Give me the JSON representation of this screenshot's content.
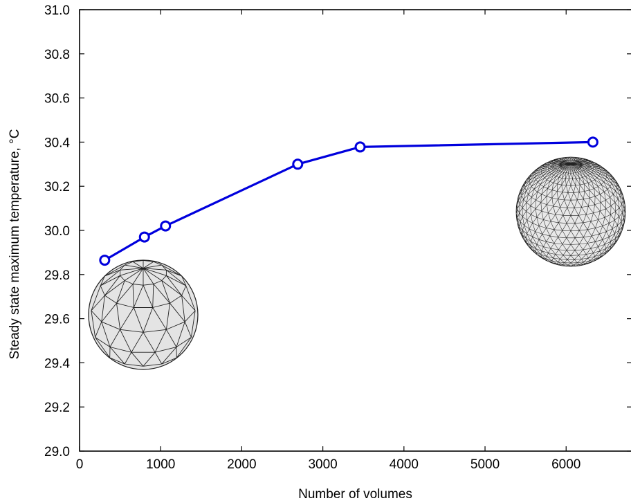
{
  "chart_data": {
    "type": "line",
    "title": "",
    "xlabel": "Number of volumes",
    "ylabel": "Steady state maximum temperature, °C",
    "xlim": [
      0,
      6800
    ],
    "ylim": [
      29.0,
      31.0
    ],
    "x_ticks": [
      0,
      1000,
      2000,
      3000,
      4000,
      5000,
      6000
    ],
    "x_tick_labels": [
      "0",
      "1000",
      "2000",
      "3000",
      "4000",
      "5000",
      "6000"
    ],
    "y_ticks": [
      29.0,
      29.2,
      29.4,
      29.6,
      29.8,
      30.0,
      30.2,
      30.4,
      30.6,
      30.8,
      31.0
    ],
    "y_tick_labels": [
      "29.0",
      "29.2",
      "29.4",
      "29.6",
      "29.8",
      "30.0",
      "30.2",
      "30.4",
      "30.6",
      "30.8",
      "31.0"
    ],
    "grid": false,
    "series": [
      {
        "color": "#0000dd",
        "marker": "open-circle",
        "x": [
          310,
          800,
          1060,
          2690,
          3460,
          6330
        ],
        "y": [
          29.865,
          29.97,
          30.02,
          30.3,
          30.378,
          30.4
        ]
      }
    ],
    "insets": [
      "coarse-mesh-sphere",
      "fine-mesh-sphere"
    ]
  }
}
